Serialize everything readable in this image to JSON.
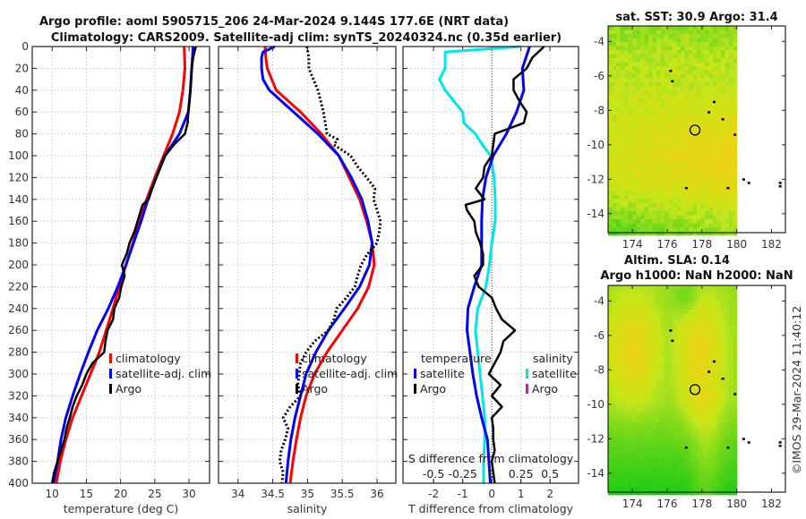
{
  "figure": {
    "title_line1": "Argo profile: aoml 5905715_206 24-Mar-2024 9.144S 177.6E (NRT data)",
    "title_line2": "Climatology: CARS2009. Satellite-adj clim: synTS_20240324.nc (0.35d earlier)",
    "credit": "©IMOS 29-Mar-2024 11:40:12"
  },
  "colors": {
    "climatology": "#ff0000",
    "satellite": "#0000ff",
    "argo": "#000000",
    "sal_satellite": "#00e5e5",
    "sal_argo": "#e600e6"
  },
  "chart_data": [
    {
      "type": "line",
      "id": "temperature",
      "xlabel": "temperature (deg C)",
      "ylabel": "",
      "xlim": [
        7.1,
        33.0
      ],
      "ylim": [
        400,
        0
      ],
      "xticks": [
        10,
        15,
        20,
        25,
        30
      ],
      "yticks": [
        0,
        20,
        40,
        60,
        80,
        100,
        120,
        140,
        160,
        180,
        200,
        220,
        240,
        260,
        280,
        300,
        320,
        340,
        360,
        380,
        400
      ],
      "grid": true,
      "legend": {
        "placement": "center-right",
        "entries": [
          "climatology",
          "satellite-adj. clim",
          "Argo"
        ]
      },
      "series": [
        {
          "name": "climatology",
          "color_key": "climatology",
          "style": "solid",
          "depth": [
            0,
            20,
            40,
            60,
            80,
            100,
            120,
            140,
            160,
            180,
            200,
            220,
            240,
            260,
            280,
            300,
            320,
            340,
            360,
            380,
            400
          ],
          "values": [
            29.3,
            29.4,
            29.1,
            28.6,
            27.6,
            26.3,
            25.0,
            23.8,
            22.8,
            21.8,
            20.8,
            19.8,
            18.9,
            17.9,
            16.9,
            15.6,
            14.3,
            13.0,
            12.0,
            11.2,
            10.6
          ]
        },
        {
          "name": "satellite-adj. clim",
          "color_key": "satellite",
          "style": "solid",
          "depth": [
            0,
            20,
            40,
            60,
            80,
            100,
            120,
            140,
            160,
            180,
            200,
            220,
            240,
            260,
            280,
            300,
            320,
            340,
            360,
            380,
            400
          ],
          "values": [
            30.6,
            30.4,
            30.2,
            29.9,
            28.6,
            26.5,
            25.2,
            24.0,
            23.0,
            21.9,
            20.8,
            19.6,
            18.2,
            16.6,
            15.3,
            14.1,
            13.0,
            12.0,
            11.3,
            10.8,
            10.2
          ]
        },
        {
          "name": "Argo",
          "color_key": "argo",
          "style": "solid",
          "depth": [
            0,
            10,
            20,
            40,
            60,
            70,
            80,
            90,
            100,
            120,
            130,
            140,
            145,
            160,
            170,
            180,
            190,
            200,
            210,
            220,
            230,
            240,
            250,
            260,
            270,
            280,
            290,
            300,
            310,
            320,
            330,
            340,
            350,
            360,
            370,
            380,
            390,
            400
          ],
          "values": [
            31.0,
            30.6,
            30.4,
            30.2,
            29.9,
            29.8,
            29.4,
            27.8,
            26.5,
            25.2,
            24.6,
            24.1,
            23.2,
            22.5,
            22.0,
            21.3,
            20.9,
            20.2,
            20.6,
            20.1,
            19.8,
            19.1,
            18.9,
            18.1,
            17.8,
            17.6,
            15.9,
            15.0,
            14.4,
            13.6,
            13.0,
            12.6,
            12.1,
            11.8,
            11.3,
            10.8,
            10.3,
            10.0
          ]
        }
      ]
    },
    {
      "type": "line",
      "id": "salinity",
      "xlabel": "salinity",
      "xlim": [
        33.72,
        36.27
      ],
      "ylim": [
        400,
        0
      ],
      "xticks": [
        34,
        34.5,
        35,
        35.5,
        36
      ],
      "xtick_labels": [
        "34",
        "34.5",
        "35",
        "35.5",
        "36"
      ],
      "grid": true,
      "legend": {
        "placement": "center-right",
        "entries": [
          "climatology",
          "satellite-adj. clim",
          "Argo"
        ]
      },
      "series": [
        {
          "name": "climatology",
          "color_key": "climatology",
          "style": "solid",
          "depth": [
            0,
            10,
            20,
            40,
            60,
            80,
            100,
            120,
            140,
            160,
            180,
            200,
            220,
            240,
            260,
            280,
            300,
            320,
            340,
            360,
            380,
            400
          ],
          "values": [
            34.39,
            34.4,
            34.42,
            34.55,
            34.9,
            35.2,
            35.45,
            35.6,
            35.75,
            35.85,
            35.93,
            35.96,
            35.88,
            35.72,
            35.5,
            35.28,
            35.1,
            34.98,
            34.9,
            34.84,
            34.79,
            34.75
          ]
        },
        {
          "name": "satellite-adj. clim",
          "color_key": "satellite",
          "style": "solid",
          "depth": [
            0,
            5,
            10,
            20,
            30,
            40,
            60,
            80,
            100,
            120,
            140,
            160,
            180,
            200,
            220,
            240,
            260,
            280,
            300,
            320,
            340,
            360,
            380,
            400
          ],
          "values": [
            34.53,
            34.36,
            34.34,
            34.34,
            34.36,
            34.45,
            34.8,
            35.15,
            35.45,
            35.63,
            35.78,
            35.87,
            35.93,
            35.89,
            35.75,
            35.53,
            35.3,
            35.12,
            34.98,
            34.9,
            34.82,
            34.76,
            34.72,
            34.69
          ]
        },
        {
          "name": "Argo",
          "color_key": "argo",
          "style": "dotted",
          "depth": [
            0,
            10,
            20,
            40,
            60,
            80,
            85,
            90,
            100,
            110,
            120,
            130,
            140,
            150,
            160,
            170,
            180,
            190,
            200,
            210,
            220,
            230,
            240,
            250,
            260,
            270,
            280,
            290,
            300,
            310,
            320,
            330,
            340,
            350,
            360,
            370,
            380,
            390,
            400
          ],
          "values": [
            34.99,
            35.02,
            35.02,
            35.15,
            35.23,
            35.28,
            35.43,
            35.38,
            35.62,
            35.72,
            35.85,
            35.97,
            35.95,
            36.0,
            36.05,
            36.03,
            36.0,
            35.86,
            35.77,
            35.72,
            35.68,
            35.56,
            35.42,
            35.38,
            35.3,
            35.1,
            34.98,
            34.9,
            34.88,
            34.86,
            34.9,
            34.75,
            34.65,
            34.72,
            34.68,
            34.62,
            34.6,
            34.65,
            34.63
          ]
        }
      ]
    },
    {
      "type": "line",
      "id": "differences",
      "xlabel": "T difference from climatology",
      "xlabel_top": "S difference from climatology",
      "xlim": [
        -3.05,
        2.98
      ],
      "xlim_salinity": [
        -0.7625,
        0.745
      ],
      "ylim": [
        400,
        0
      ],
      "xticks": [
        -2,
        -1,
        0,
        1,
        2
      ],
      "xticks_salinity": [
        -0.5,
        -0.25,
        0,
        0.25,
        0.5
      ],
      "xtick_labels_salinity": [
        "-0.5",
        "-0.25",
        "0",
        "0.25",
        "0.5"
      ],
      "zero_line": true,
      "grid": true,
      "legend": {
        "placement": "center",
        "temperature_heading": "temperature",
        "salinity_heading": "salinity",
        "entries_temperature": [
          "satellite",
          "Argo"
        ],
        "entries_salinity": [
          "satellite",
          "Argo"
        ]
      },
      "series": [
        {
          "name": "T satellite",
          "color_key": "satellite",
          "axis": "T",
          "depth": [
            0,
            20,
            40,
            60,
            80,
            100,
            120,
            140,
            160,
            180,
            200,
            220,
            240,
            260,
            280,
            300,
            320,
            340,
            360,
            380,
            400
          ],
          "values": [
            1.3,
            1.05,
            1.1,
            0.85,
            0.5,
            0.05,
            -0.2,
            -0.32,
            -0.35,
            -0.35,
            -0.35,
            -0.6,
            -0.82,
            -0.85,
            -0.75,
            -0.65,
            -0.52,
            -0.35,
            -0.15,
            -0.1,
            -0.05
          ]
        },
        {
          "name": "T Argo",
          "color_key": "argo",
          "axis": "T",
          "depth": [
            0,
            5,
            10,
            20,
            30,
            40,
            50,
            60,
            70,
            75,
            80,
            90,
            100,
            110,
            120,
            130,
            140,
            145,
            150,
            160,
            170,
            180,
            190,
            200,
            210,
            220,
            230,
            240,
            250,
            260,
            270,
            280,
            290,
            300,
            310,
            320,
            330,
            340,
            350,
            360,
            370,
            380,
            390,
            400
          ],
          "values": [
            1.8,
            1.6,
            1.4,
            1.2,
            0.75,
            0.75,
            0.95,
            1.2,
            1.1,
            0.6,
            0.1,
            0.05,
            0.0,
            -0.25,
            -0.3,
            -0.55,
            -0.25,
            -0.9,
            -0.85,
            -0.6,
            -0.55,
            -0.4,
            -0.3,
            -0.3,
            -0.6,
            -0.45,
            0.0,
            0.15,
            0.35,
            0.8,
            0.4,
            0.3,
            0.1,
            -0.1,
            0.3,
            0.0,
            0.35,
            0.0,
            0.05,
            0.05,
            0.1,
            0.0,
            0.05,
            0.1
          ]
        },
        {
          "name": "S satellite",
          "color_key": "sal_satellite",
          "axis": "S",
          "depth": [
            0,
            5,
            20,
            30,
            40,
            60,
            70,
            80,
            90,
            100,
            120,
            140,
            160,
            180,
            200,
            220,
            240,
            260,
            280,
            300,
            320,
            340,
            360,
            380,
            400
          ],
          "values": [
            0.25,
            -0.4,
            -0.4,
            -0.45,
            -0.4,
            -0.25,
            -0.24,
            -0.14,
            -0.08,
            -0.01,
            0.02,
            0.03,
            0.03,
            0.0,
            -0.02,
            -0.05,
            -0.12,
            -0.14,
            -0.12,
            -0.1,
            -0.08,
            -0.06,
            -0.06,
            -0.07,
            -0.07
          ]
        }
      ]
    },
    {
      "type": "heatmap",
      "id": "sst_map",
      "title": "sat. SST: 30.9 Argo: 31.4",
      "xlim": [
        172.6,
        182.8
      ],
      "ylim": [
        -15.1,
        -3.1
      ],
      "xticks": [
        174,
        176,
        178,
        180,
        182
      ],
      "yticks": [
        -4,
        -6,
        -8,
        -10,
        -12,
        -14
      ],
      "data_lon_max": 180,
      "marker": {
        "lon": 177.6,
        "lat": -9.144
      },
      "islands": [
        [
          176.2,
          -5.7
        ],
        [
          176.3,
          -6.3
        ],
        [
          178.7,
          -7.5
        ],
        [
          178.4,
          -8.1
        ],
        [
          179.2,
          -8.5
        ],
        [
          179.9,
          -9.4
        ],
        [
          177.1,
          -12.5
        ],
        [
          179.5,
          -12.5
        ],
        [
          180.4,
          -12.0
        ],
        [
          180.7,
          -12.2
        ],
        [
          182.5,
          -12.4
        ],
        [
          182.5,
          -12.2
        ]
      ],
      "colorscale": "green-yellow-orange"
    },
    {
      "type": "heatmap",
      "id": "sla_map",
      "title": "Altim. SLA: 0.14",
      "subtitle": "Argo h1000: NaN h2000: NaN",
      "xlim": [
        172.6,
        182.8
      ],
      "ylim": [
        -15.1,
        -3.1
      ],
      "xticks": [
        174,
        176,
        178,
        180,
        182
      ],
      "yticks": [
        -4,
        -6,
        -8,
        -10,
        -12,
        -14
      ],
      "data_lon_max": 180,
      "marker": {
        "lon": 177.6,
        "lat": -9.144
      },
      "islands": [
        [
          176.2,
          -5.7
        ],
        [
          176.3,
          -6.3
        ],
        [
          178.7,
          -7.5
        ],
        [
          178.4,
          -8.1
        ],
        [
          179.2,
          -8.5
        ],
        [
          179.9,
          -9.4
        ],
        [
          177.1,
          -12.5
        ],
        [
          179.5,
          -12.5
        ],
        [
          180.4,
          -12.0
        ],
        [
          180.7,
          -12.2
        ],
        [
          182.5,
          -12.4
        ],
        [
          182.5,
          -12.2
        ]
      ],
      "colorscale": "green-yellow"
    }
  ]
}
